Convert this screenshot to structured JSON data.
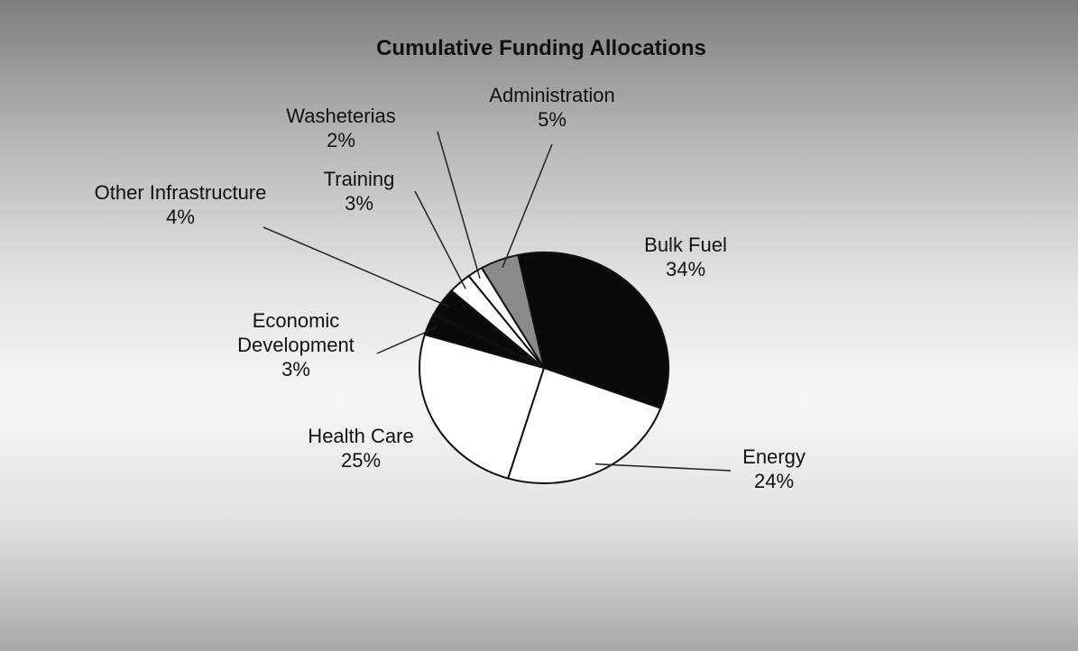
{
  "chart_data": {
    "type": "pie",
    "title": "Cumulative Funding Allocations",
    "categories": [
      "Bulk Fuel",
      "Energy",
      "Health Care",
      "Economic Development",
      "Other Infrastructure",
      "Training",
      "Washeterias",
      "Administration"
    ],
    "values": [
      34,
      24,
      25,
      3,
      4,
      3,
      2,
      5
    ],
    "value_labels": [
      "34%",
      "24%",
      "25%",
      "3%",
      "4%",
      "3%",
      "2%",
      "5%"
    ],
    "colors": [
      "#0a0a0a",
      "#ffffff",
      "#ffffff",
      "#0a0a0a",
      "#0a0a0a",
      "#ffffff",
      "#ffffff",
      "#8a8a8a"
    ]
  }
}
